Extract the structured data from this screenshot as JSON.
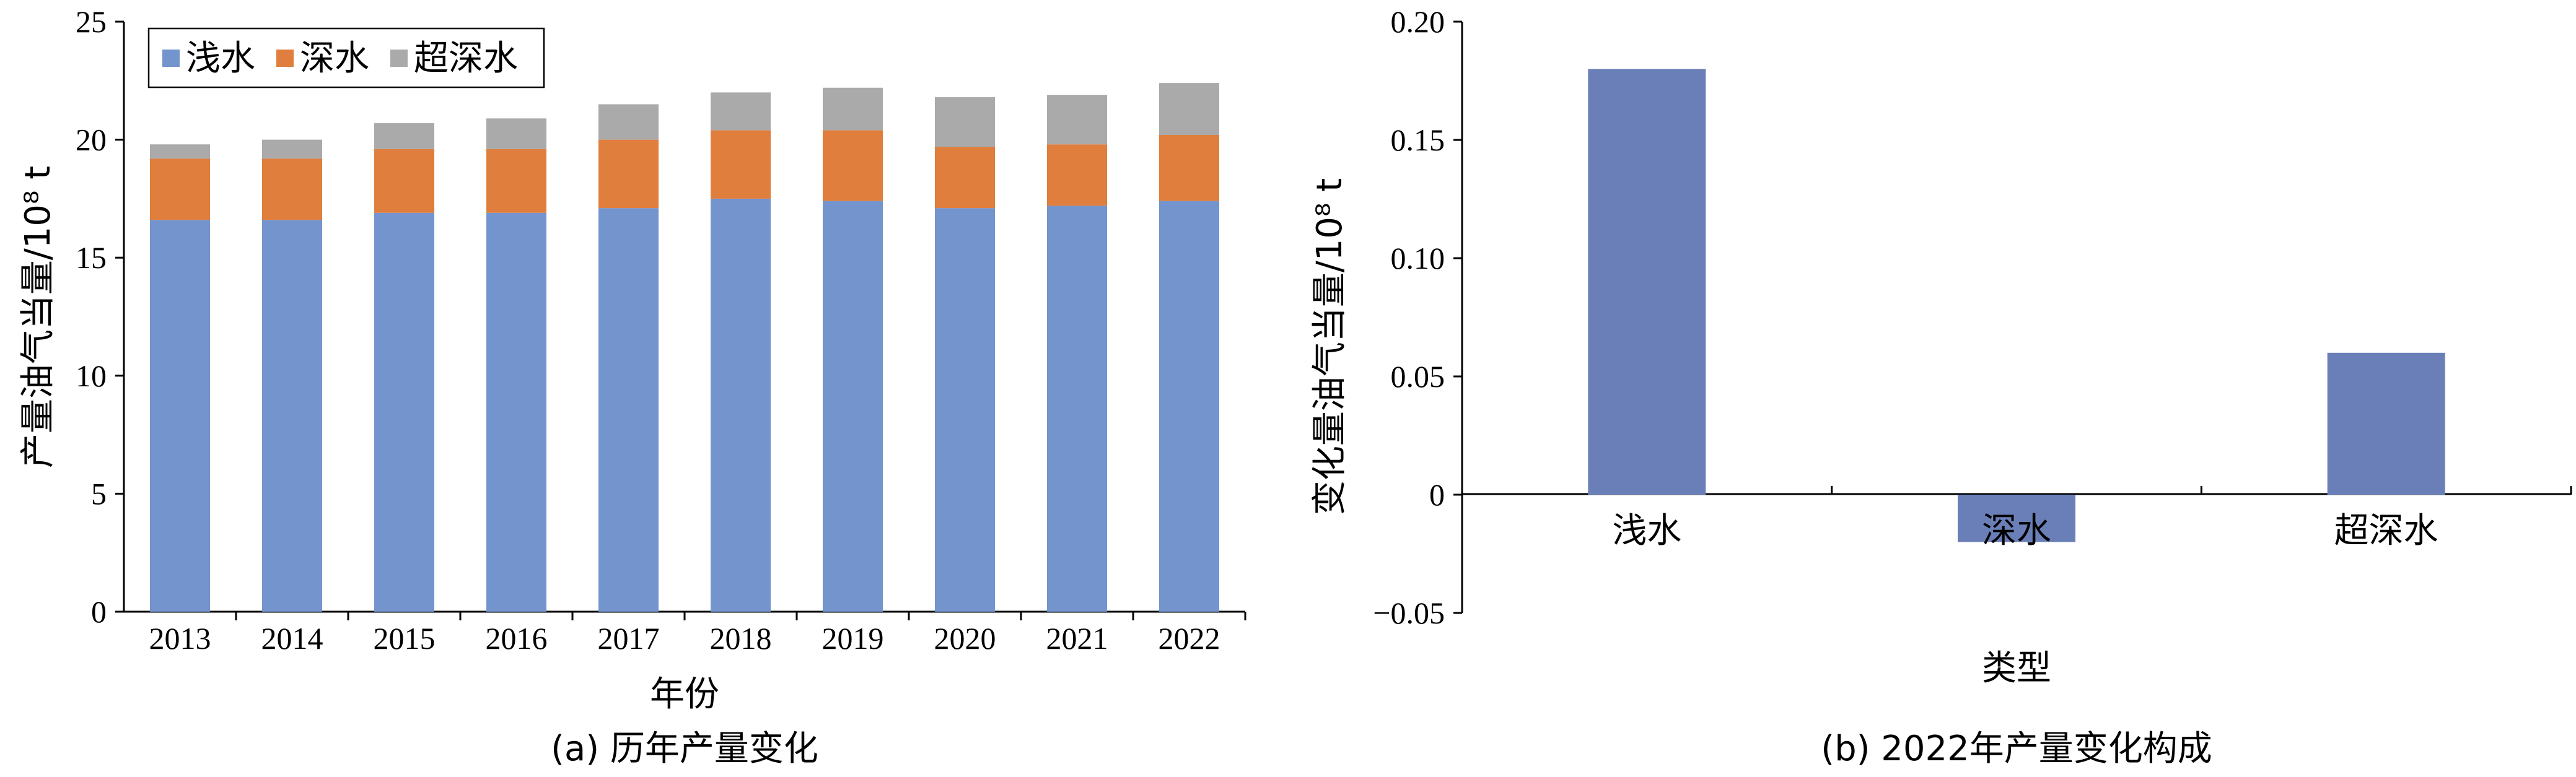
{
  "chart_data": [
    {
      "type": "bar",
      "stacked": true,
      "caption": "(a) 历年产量变化",
      "xlabel": "年份",
      "ylabel": "产量油气当量/10⁸ t",
      "ylim": [
        0,
        25
      ],
      "yticks": [
        "0",
        "5",
        "10",
        "15",
        "20",
        "25"
      ],
      "grid": false,
      "legend_position": "top-left",
      "categories": [
        "2013",
        "2014",
        "2015",
        "2016",
        "2017",
        "2018",
        "2019",
        "2020",
        "2021",
        "2022"
      ],
      "series": [
        {
          "name": "浅水",
          "color": "#7394cc",
          "values": [
            16.6,
            16.6,
            16.9,
            16.9,
            17.1,
            17.5,
            17.4,
            17.1,
            17.2,
            17.4
          ]
        },
        {
          "name": "深水",
          "color": "#e07e3d",
          "values": [
            2.6,
            2.6,
            2.7,
            2.7,
            2.9,
            2.9,
            3.0,
            2.6,
            2.6,
            2.8
          ]
        },
        {
          "name": "超深水",
          "color": "#aaaaaa",
          "values": [
            0.6,
            0.8,
            1.1,
            1.3,
            1.5,
            1.6,
            1.8,
            2.1,
            2.1,
            2.2
          ]
        }
      ]
    },
    {
      "type": "bar",
      "caption": "(b) 2022年产量变化构成",
      "xlabel": "类型",
      "ylabel": "变化量油气当量/10⁸ t",
      "ylim": [
        -0.05,
        0.2
      ],
      "yticks": [
        "−0.05",
        "0",
        "0.05",
        "0.10",
        "0.15",
        "0.20"
      ],
      "grid": false,
      "categories": [
        "浅水",
        "深水",
        "超深水"
      ],
      "series": [
        {
          "color": "#6a7fb8",
          "values": [
            0.18,
            -0.02,
            0.06
          ]
        }
      ]
    }
  ]
}
